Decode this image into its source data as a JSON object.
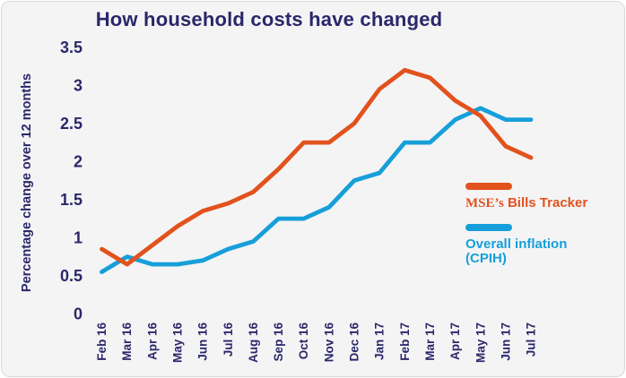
{
  "chart": {
    "title": "How household costs have changed",
    "y_axis_title": "Percentage change over 12 months"
  },
  "legend": {
    "mse_serif": "MSE’s",
    "mse_sans": "Bills Tracker",
    "cpih_line1": "Overall inflation",
    "cpih_line2": "(CPIH)"
  },
  "colors": {
    "title_text": "#2b2769",
    "axis_text": "#2b2769",
    "background": "#f4f4f5",
    "card_border": "#d9d9d9",
    "mse_orange": "#e2521d",
    "cpih_blue": "#169fd9"
  },
  "chart_data": {
    "type": "line",
    "title": "How household costs have changed",
    "xlabel": "",
    "ylabel": "Percentage change over 12 months",
    "ylim": [
      0,
      3.5
    ],
    "y_ticks": [
      3.5,
      3,
      2.5,
      2,
      1.5,
      1,
      0.5,
      0
    ],
    "grid": false,
    "legend_position": "right",
    "categories": [
      "Feb 16",
      "Mar 16",
      "Apr 16",
      "May 16",
      "Jun 16",
      "Jul 16",
      "Aug 16",
      "Sep 16",
      "Oct 16",
      "Nov 16",
      "Dec 16",
      "Jan 17",
      "Feb 17",
      "Mar 17",
      "Apr 17",
      "May 17",
      "Jun 17",
      "Jul 17"
    ],
    "series": [
      {
        "name": "MSE's Bills Tracker",
        "color": "#e2521d",
        "values": [
          0.85,
          0.65,
          0.9,
          1.15,
          1.35,
          1.45,
          1.6,
          1.9,
          2.25,
          2.25,
          2.5,
          2.95,
          3.2,
          3.1,
          2.8,
          2.6,
          2.2,
          2.05
        ]
      },
      {
        "name": "Overall inflation (CPIH)",
        "color": "#169fd9",
        "values": [
          0.55,
          0.75,
          0.65,
          0.65,
          0.7,
          0.85,
          0.95,
          1.25,
          1.25,
          1.4,
          1.75,
          1.85,
          2.25,
          2.25,
          2.55,
          2.7,
          2.55,
          2.55
        ]
      }
    ]
  }
}
